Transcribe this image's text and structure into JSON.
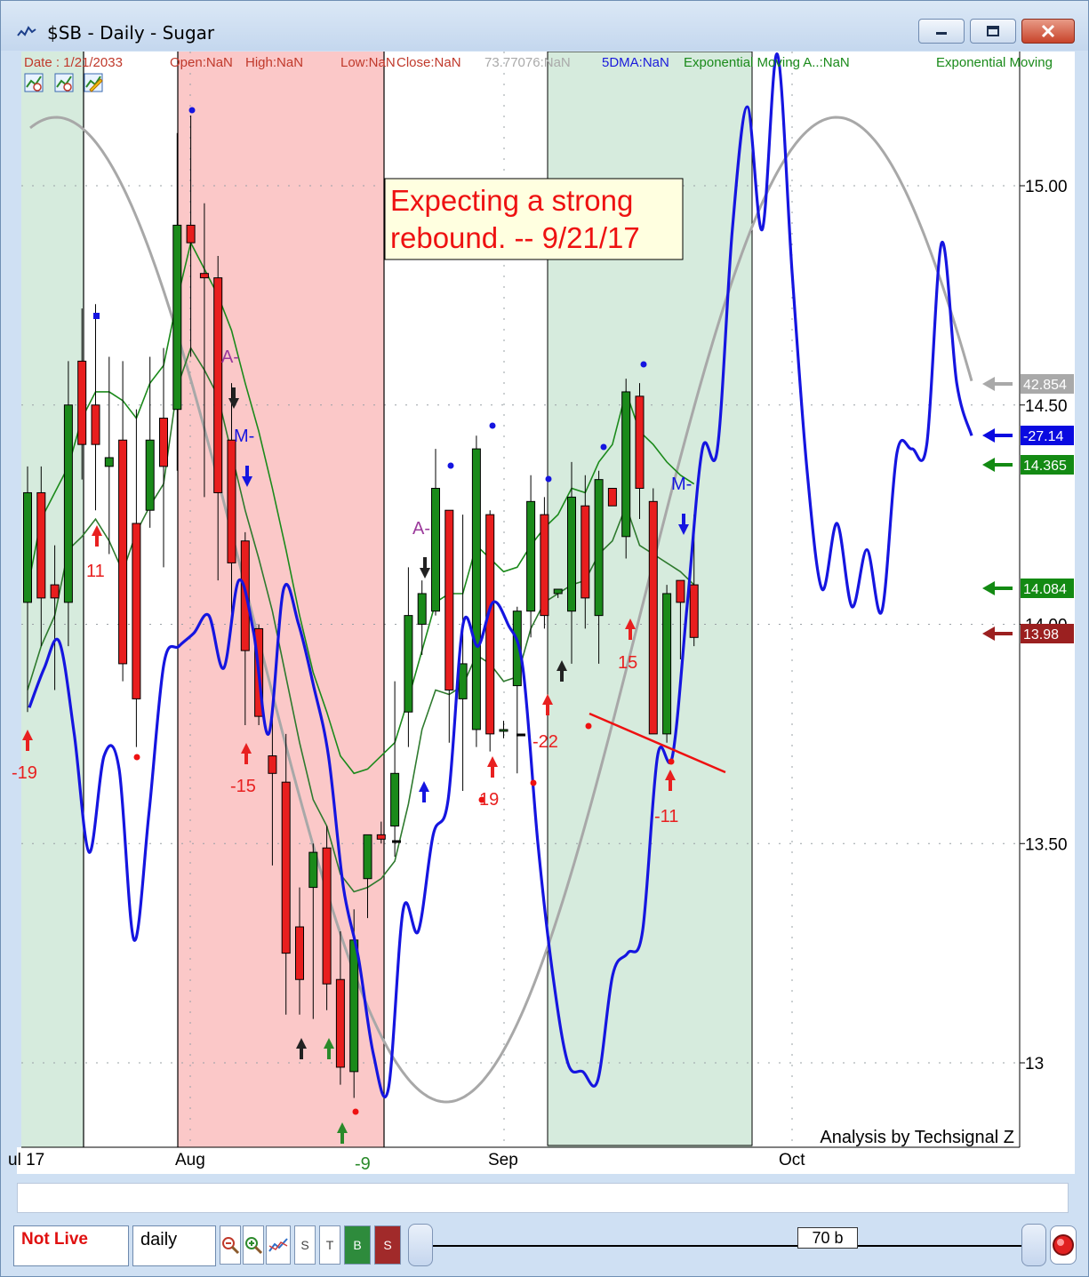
{
  "window": {
    "title": "$SB  -  Daily - Sugar",
    "minimize_icon": "minimize-icon",
    "maximize_icon": "maximize-icon",
    "close_icon": "close-icon"
  },
  "info_line": [
    {
      "text": "Date : 1/21/2033",
      "color": "#c0392b"
    },
    {
      "text": "Open:NaN",
      "color": "#c0392b"
    },
    {
      "text": "High:NaN",
      "color": "#c0392b"
    },
    {
      "text": "Low:NaN",
      "color": "#c0392b"
    },
    {
      "text": "Close:NaN",
      "color": "#c0392b"
    },
    {
      "text": "73.77076:NaN",
      "color": "#aaaaaa"
    },
    {
      "text": "5DMA:NaN",
      "color": "#1a1adc"
    },
    {
      "text": "Exponential Moving A..:NaN",
      "color": "#1a8a1a"
    },
    {
      "text": "Exponential Moving",
      "color": "#1a8a1a"
    }
  ],
  "toolbar_icons": [
    "chart-tool-icon-1",
    "chart-tool-icon-2",
    "chart-edit-icon"
  ],
  "annotation": {
    "line1": "Expecting a strong",
    "line2": "rebound. -- 9/21/17"
  },
  "credit": "Analysis by Techsignal Z",
  "x_labels": [
    "ul 17",
    "Aug",
    "Sep",
    "Oct"
  ],
  "chart_data": {
    "type": "candlestick",
    "y_ticks": [
      "15.00",
      "14.50",
      "14.00",
      "13.50",
      "13"
    ],
    "ylim": [
      12.82,
      15.55
    ],
    "price_tags": [
      {
        "label": "42.854",
        "value": 14.555,
        "color": "#a9a9a9"
      },
      {
        "label": "-27.14",
        "value": 14.43,
        "color": "#0a0ae0"
      },
      {
        "label": "14.365",
        "value": 14.365,
        "color": "#138a13"
      },
      {
        "label": "14.084",
        "value": 14.084,
        "color": "#138a13"
      },
      {
        "label": "13.98",
        "value": 13.98,
        "color": "#9b2020"
      }
    ],
    "candles": [
      {
        "o": 14.05,
        "h": 14.36,
        "l": 13.8,
        "c": 14.3
      },
      {
        "o": 14.3,
        "h": 14.36,
        "l": 13.95,
        "c": 14.06
      },
      {
        "o": 14.09,
        "h": 14.18,
        "l": 13.85,
        "c": 14.06
      },
      {
        "o": 14.05,
        "h": 14.6,
        "l": 13.95,
        "c": 14.5
      },
      {
        "o": 14.6,
        "h": 14.72,
        "l": 14.33,
        "c": 14.41
      },
      {
        "o": 14.5,
        "h": 14.73,
        "l": 14.26,
        "c": 14.41
      },
      {
        "o": 14.36,
        "h": 14.61,
        "l": 14.16,
        "c": 14.38
      },
      {
        "o": 14.42,
        "h": 14.6,
        "l": 13.87,
        "c": 13.91
      },
      {
        "o": 14.23,
        "h": 14.49,
        "l": 13.72,
        "c": 13.83
      },
      {
        "o": 14.26,
        "h": 14.61,
        "l": 14.22,
        "c": 14.42
      },
      {
        "o": 14.47,
        "h": 14.63,
        "l": 14.13,
        "c": 14.36
      },
      {
        "o": 14.49,
        "h": 15.12,
        "l": 14.35,
        "c": 14.91
      },
      {
        "o": 14.91,
        "h": 15.16,
        "l": 14.61,
        "c": 14.87
      },
      {
        "o": 14.8,
        "h": 14.96,
        "l": 14.29,
        "c": 14.79
      },
      {
        "o": 14.79,
        "h": 14.84,
        "l": 14.1,
        "c": 14.3
      },
      {
        "o": 14.42,
        "h": 14.55,
        "l": 13.99,
        "c": 14.14
      },
      {
        "o": 14.19,
        "h": 14.21,
        "l": 13.77,
        "c": 13.94
      },
      {
        "o": 13.99,
        "h": 14.0,
        "l": 13.77,
        "c": 13.79
      },
      {
        "o": 13.7,
        "h": 13.8,
        "l": 13.45,
        "c": 13.66
      },
      {
        "o": 13.64,
        "h": 13.75,
        "l": 13.11,
        "c": 13.25
      },
      {
        "o": 13.31,
        "h": 13.4,
        "l": 13.11,
        "c": 13.19
      },
      {
        "o": 13.4,
        "h": 13.5,
        "l": 13.1,
        "c": 13.48
      },
      {
        "o": 13.49,
        "h": 13.54,
        "l": 13.12,
        "c": 13.18
      },
      {
        "o": 13.19,
        "h": 13.3,
        "l": 12.95,
        "c": 12.99
      },
      {
        "o": 12.98,
        "h": 13.35,
        "l": 12.92,
        "c": 13.28
      },
      {
        "o": 13.42,
        "h": 13.52,
        "l": 13.33,
        "c": 13.52
      },
      {
        "o": 13.52,
        "h": 13.55,
        "l": 13.5,
        "c": 13.51
      },
      {
        "o": 13.54,
        "h": 13.87,
        "l": 13.47,
        "c": 13.66
      },
      {
        "o": 13.8,
        "h": 14.13,
        "l": 13.72,
        "c": 14.02
      },
      {
        "o": 14.0,
        "h": 14.1,
        "l": 13.93,
        "c": 14.07
      },
      {
        "o": 14.03,
        "h": 14.4,
        "l": 14.02,
        "c": 14.31
      },
      {
        "o": 14.26,
        "h": 14.26,
        "l": 13.73,
        "c": 13.85
      },
      {
        "o": 13.83,
        "h": 14.25,
        "l": 13.62,
        "c": 13.91
      },
      {
        "o": 13.76,
        "h": 14.43,
        "l": 13.72,
        "c": 14.4
      },
      {
        "o": 14.25,
        "h": 14.26,
        "l": 13.71,
        "c": 13.75
      },
      {
        "o": 13.76,
        "h": 13.78,
        "l": 13.74,
        "c": 13.76
      },
      {
        "o": 13.86,
        "h": 14.04,
        "l": 13.66,
        "c": 14.03
      },
      {
        "o": 14.03,
        "h": 14.34,
        "l": 13.97,
        "c": 14.28
      },
      {
        "o": 14.25,
        "h": 14.29,
        "l": 13.99,
        "c": 14.02
      },
      {
        "o": 14.07,
        "h": 14.08,
        "l": 14.06,
        "c": 14.08
      },
      {
        "o": 14.03,
        "h": 14.37,
        "l": 13.91,
        "c": 14.29
      },
      {
        "o": 14.27,
        "h": 14.34,
        "l": 13.99,
        "c": 14.06
      },
      {
        "o": 14.02,
        "h": 14.35,
        "l": 13.91,
        "c": 14.33
      },
      {
        "o": 14.31,
        "h": 14.31,
        "l": 14.27,
        "c": 14.27
      },
      {
        "o": 14.2,
        "h": 14.56,
        "l": 14.15,
        "c": 14.53
      },
      {
        "o": 14.52,
        "h": 14.55,
        "l": 14.24,
        "c": 14.31
      },
      {
        "o": 14.28,
        "h": 14.31,
        "l": 13.75,
        "c": 13.75
      },
      {
        "o": 13.75,
        "h": 14.09,
        "l": 13.73,
        "c": 14.07
      },
      {
        "o": 14.1,
        "h": 14.1,
        "l": 13.92,
        "c": 14.05
      },
      {
        "o": 14.09,
        "h": 14.25,
        "l": 13.95,
        "c": 13.97
      }
    ],
    "fast_ma_upper": [
      14.08,
      14.24,
      14.3,
      14.36,
      14.47,
      14.53,
      14.53,
      14.51,
      14.47,
      14.55,
      14.59,
      14.74,
      14.87,
      14.81,
      14.75,
      14.67,
      14.55,
      14.44,
      14.31,
      14.17,
      14.02,
      13.89,
      13.8,
      13.7,
      13.66,
      13.67,
      13.7,
      13.73,
      13.83,
      13.94,
      14.05,
      14.07,
      14.07,
      14.18,
      14.15,
      14.12,
      14.13,
      14.18,
      14.22,
      14.25,
      14.31,
      14.3,
      14.37,
      14.41,
      14.53,
      14.44,
      14.41,
      14.37,
      14.34,
      14.32
    ],
    "fast_ma_lower": [
      13.85,
      13.95,
      14.02,
      14.17,
      14.2,
      14.24,
      14.19,
      14.12,
      14.21,
      14.27,
      14.32,
      14.54,
      14.63,
      14.58,
      14.52,
      14.39,
      14.26,
      14.15,
      14.03,
      13.88,
      13.73,
      13.6,
      13.54,
      13.43,
      13.39,
      13.4,
      13.42,
      13.46,
      13.59,
      13.76,
      13.85,
      13.84,
      13.86,
      13.93,
      13.91,
      13.87,
      13.88,
      13.99,
      14.05,
      14.07,
      14.09,
      14.1,
      14.16,
      14.19,
      14.27,
      14.18,
      14.16,
      14.14,
      14.12,
      14.09
    ],
    "blue_line": [
      13.81,
      13.9,
      13.96,
      13.75,
      13.48,
      13.7,
      13.67,
      13.28,
      13.57,
      13.91,
      13.95,
      13.98,
      14.02,
      13.9,
      14.1,
      13.98,
      13.75,
      14.08,
      14.0,
      13.86,
      13.7,
      13.4,
      13.24,
      13.02,
      12.94,
      13.35,
      13.3,
      13.52,
      13.6,
      14.0,
      13.95,
      14.05,
      14.0,
      13.9,
      13.5,
      13.2,
      13.0,
      12.98,
      12.96,
      13.2,
      13.25,
      13.3,
      13.7,
      13.7,
      14.05,
      14.4,
      14.4,
      14.9,
      15.18,
      14.9,
      15.3,
      14.8,
      14.35,
      14.08,
      14.23,
      14.04,
      14.17,
      14.03,
      14.39,
      14.4,
      14.41,
      14.87,
      14.55,
      14.43
    ],
    "gray_line_note": "cycle curve peaks at ~15.28 in July and early October, trough ~12.92 in late August",
    "signals": {
      "green_up_arrows": [
        "-9"
      ],
      "red_up_arrows": [
        "-19",
        "11",
        "-15",
        "19",
        "-22",
        "15",
        "-11"
      ],
      "black_arrows": [
        "A-"
      ],
      "blue_arrows": [
        "M-"
      ]
    }
  },
  "bottom_bar": {
    "not_live": "Not Live",
    "period": "daily",
    "zoom_out_icon": "zoom-out-icon",
    "zoom_in_icon": "zoom-in-icon",
    "indicator_icon": "indicator-icon",
    "s_label": "S",
    "t_label": "T",
    "buy_label": "B",
    "sell_label": "S",
    "bars": "70 b",
    "record_icon": "record-icon"
  }
}
